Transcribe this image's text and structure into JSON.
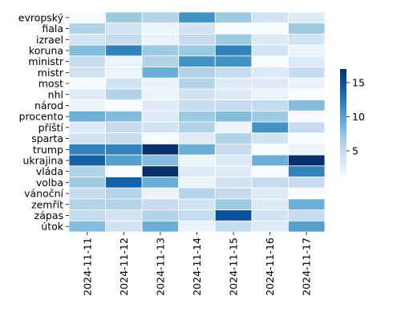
{
  "chart_data": {
    "type": "heatmap",
    "title": "",
    "xlabel": "",
    "ylabel": "",
    "colormap": "Blues",
    "vmin": 1,
    "vmax": 17,
    "colorbar_ticks": [
      5,
      10,
      15
    ],
    "x": [
      "2024-11-11",
      "2024-11-12",
      "2024-11-13",
      "2024-11-14",
      "2024-11-15",
      "2024-11-16",
      "2024-11-17"
    ],
    "y": [
      "evropský",
      "fiala",
      "izrael",
      "koruna",
      "ministr",
      "mistr",
      "most",
      "nhl",
      "národ",
      "procento",
      "příští",
      "sparta",
      "trump",
      "ukrajina",
      "vláda",
      "volba",
      "vánoční",
      "zemřít",
      "zápas",
      "útok"
    ],
    "values": [
      [
        1,
        7,
        6,
        11,
        7,
        4,
        3
      ],
      [
        6,
        4,
        2,
        4,
        1,
        1,
        7
      ],
      [
        4,
        5,
        2,
        5,
        7,
        3,
        4
      ],
      [
        8,
        12,
        7,
        7,
        12,
        4,
        2
      ],
      [
        5,
        2,
        6,
        11,
        11,
        1,
        3
      ],
      [
        4,
        2,
        9,
        6,
        5,
        3,
        5
      ],
      [
        1,
        4,
        2,
        6,
        3,
        3,
        2
      ],
      [
        3,
        6,
        2,
        4,
        3,
        2,
        1
      ],
      [
        2,
        1,
        3,
        5,
        5,
        5,
        8
      ],
      [
        9,
        8,
        3,
        7,
        8,
        7,
        1
      ],
      [
        3,
        5,
        4,
        6,
        2,
        11,
        5
      ],
      [
        4,
        5,
        1,
        3,
        6,
        4,
        1
      ],
      [
        12,
        12,
        17,
        9,
        5,
        1,
        2
      ],
      [
        14,
        10,
        8,
        2,
        3,
        9,
        17
      ],
      [
        6,
        1,
        17,
        3,
        3,
        1,
        12
      ],
      [
        7,
        14,
        9,
        2,
        4,
        5,
        5
      ],
      [
        5,
        6,
        2,
        6,
        5,
        3,
        1
      ],
      [
        6,
        6,
        5,
        4,
        7,
        3,
        9
      ],
      [
        5,
        4,
        6,
        5,
        15,
        4,
        5
      ],
      [
        8,
        4,
        9,
        2,
        5,
        3,
        10
      ]
    ]
  }
}
